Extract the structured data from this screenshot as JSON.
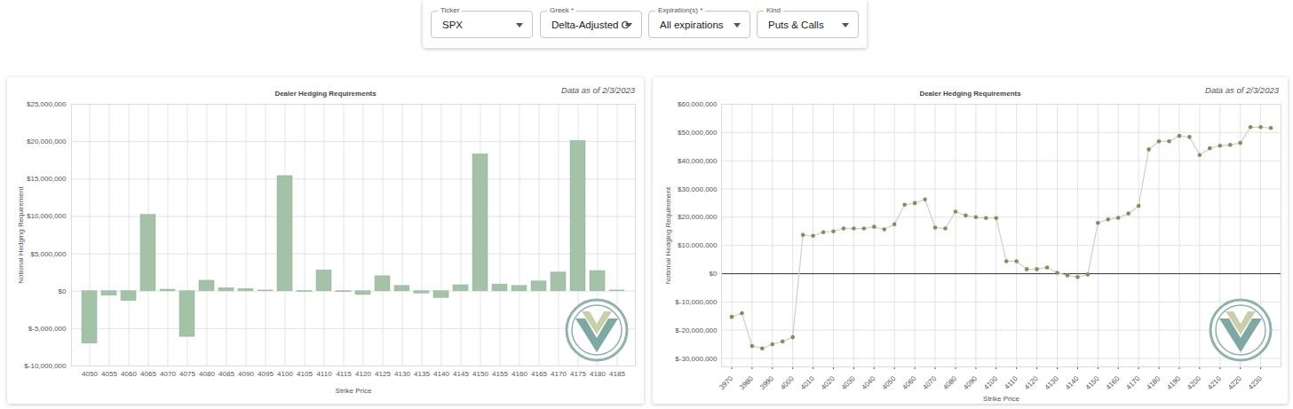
{
  "controls": [
    {
      "label": "Ticker",
      "value": "SPX"
    },
    {
      "label": "Greek *",
      "value": "Delta-Adjusted G"
    },
    {
      "label": "Expiration(s) *",
      "value": "All expirations"
    },
    {
      "label": "Kind",
      "value": "Puts & Calls"
    }
  ],
  "chart_data": [
    {
      "type": "bar",
      "title": "Dealer Hedging Requirements",
      "subtitle": "Data as of 2/3/2023",
      "x_label": "Strike Price",
      "y_label": "Notional Hedging Requirement",
      "categories": [
        "4050",
        "4055",
        "4060",
        "4065",
        "4070",
        "4075",
        "4080",
        "4085",
        "4090",
        "4095",
        "4100",
        "4105",
        "4110",
        "4115",
        "4120",
        "4125",
        "4130",
        "4135",
        "4140",
        "4145",
        "4150",
        "4155",
        "4160",
        "4165",
        "4170",
        "4175",
        "4180",
        "4185"
      ],
      "values": [
        -7000000,
        -600000,
        -1300000,
        10200000,
        200000,
        -6100000,
        1400000,
        400000,
        300000,
        100000,
        15400000,
        -100000,
        2800000,
        -100000,
        -500000,
        2000000,
        700000,
        -300000,
        -900000,
        800000,
        18300000,
        900000,
        700000,
        1300000,
        2500000,
        20100000,
        2700000,
        100000
      ],
      "color": "#a3c2a8",
      "ylim": [
        -10000000,
        25000000
      ],
      "yticks": [
        {
          "value": -10000000,
          "label": "$-10,000,000"
        },
        {
          "value": -5000000,
          "label": "$-5,000,000"
        },
        {
          "value": 0,
          "label": "$0"
        },
        {
          "value": 5000000,
          "label": "$5,000,000"
        },
        {
          "value": 10000000,
          "label": "$10,000,000"
        },
        {
          "value": 15000000,
          "label": "$15,000,000"
        },
        {
          "value": 20000000,
          "label": "$20,000,000"
        },
        {
          "value": 25000000,
          "label": "$25,000,000"
        }
      ],
      "grid": true
    },
    {
      "type": "line",
      "title": "Dealer Hedging Requirements",
      "subtitle": "Data as of 2/3/2023",
      "x_label": "Strike Price",
      "y_label": "Notional Hedging Requirement",
      "x": [
        3970,
        3975,
        3980,
        3985,
        3990,
        3995,
        4000,
        4005,
        4010,
        4015,
        4020,
        4025,
        4030,
        4035,
        4040,
        4045,
        4050,
        4055,
        4060,
        4065,
        4070,
        4075,
        4080,
        4085,
        4090,
        4095,
        4100,
        4105,
        4110,
        4115,
        4120,
        4125,
        4130,
        4135,
        4140,
        4145,
        4150,
        4155,
        4160,
        4165,
        4170,
        4175,
        4180,
        4185,
        4190,
        4195,
        4200,
        4205,
        4210,
        4215,
        4220,
        4225,
        4230,
        4235
      ],
      "values": [
        -15300000,
        -14000000,
        -25600000,
        -26500000,
        -25000000,
        -24000000,
        -22500000,
        13700000,
        13400000,
        14700000,
        15000000,
        16000000,
        16000000,
        16000000,
        16600000,
        15700000,
        17500000,
        24400000,
        25000000,
        26300000,
        16300000,
        16000000,
        22000000,
        20600000,
        20000000,
        19700000,
        19700000,
        4400000,
        4400000,
        1600000,
        1600000,
        2200000,
        300000,
        -600000,
        -1200000,
        -300000,
        18000000,
        19200000,
        19800000,
        21300000,
        24000000,
        44000000,
        46900000,
        46900000,
        48800000,
        48400000,
        42000000,
        44400000,
        45300000,
        45600000,
        46300000,
        51900000,
        51900000,
        51600000
      ],
      "color": "#868e58",
      "marker": "circle",
      "xlim": [
        3965,
        4240
      ],
      "xticks": [
        3970,
        3980,
        3990,
        4000,
        4010,
        4020,
        4030,
        4040,
        4050,
        4060,
        4070,
        4080,
        4090,
        4100,
        4110,
        4120,
        4130,
        4140,
        4150,
        4160,
        4170,
        4180,
        4190,
        4200,
        4210,
        4220,
        4230
      ],
      "ylim": [
        -33000000,
        60000000
      ],
      "yticks": [
        {
          "value": -30000000,
          "label": "$-30,000,000"
        },
        {
          "value": -20000000,
          "label": "$-20,000,000"
        },
        {
          "value": -10000000,
          "label": "$-10,000,000"
        },
        {
          "value": 0,
          "label": "$0"
        },
        {
          "value": 10000000,
          "label": "$10,000,000"
        },
        {
          "value": 20000000,
          "label": "$20,000,000"
        },
        {
          "value": 30000000,
          "label": "$30,000,000"
        },
        {
          "value": 40000000,
          "label": "$40,000,000"
        },
        {
          "value": 50000000,
          "label": "$50,000,000"
        },
        {
          "value": 60000000,
          "label": "$60,000,000"
        }
      ],
      "grid": true
    }
  ]
}
